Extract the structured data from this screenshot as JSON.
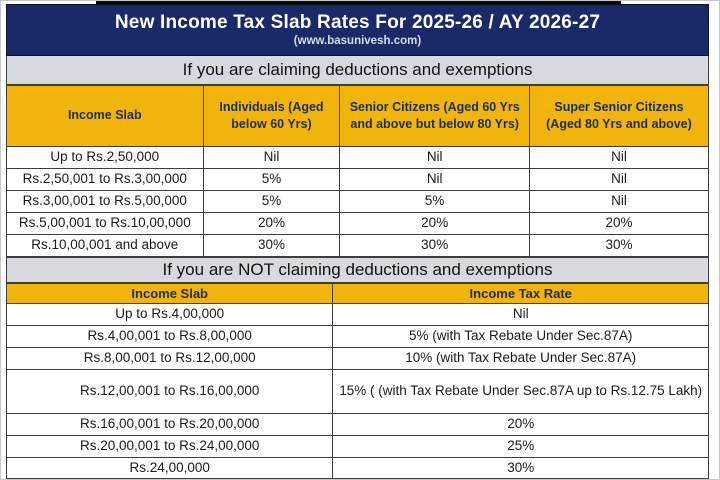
{
  "header": {
    "title": "New Income Tax Slab Rates For 2025-26 / AY 2026-27",
    "subtitle": "(www.basunivesh.com)"
  },
  "colors": {
    "navy_header": "#1A2A68",
    "gold_header": "#F0B40A",
    "gray_banner": "#D6DADE",
    "header_text_navy": "#1E2E55",
    "body_text": "#1A1A1A",
    "border": "#3E3E3E",
    "subtitle_text": "#D8DAE4"
  },
  "section_deductions": {
    "banner": "If you are claiming deductions and exemptions",
    "columns": [
      "Income Slab",
      "Individuals (Aged below 60 Yrs)",
      "Senior Citizens (Aged 60 Yrs and above but below 80 Yrs)",
      "Super Senior Citizens (Aged 80 Yrs and above)"
    ],
    "rows": [
      [
        "Up to Rs.2,50,000",
        "Nil",
        "Nil",
        "Nil"
      ],
      [
        "Rs.2,50,001 to Rs.3,00,000",
        "5%",
        "Nil",
        "Nil"
      ],
      [
        "Rs.3,00,001 to Rs.5,00,000",
        "5%",
        "5%",
        "Nil"
      ],
      [
        "Rs.5,00,001 to Rs.10,00,000",
        "20%",
        "20%",
        "20%"
      ],
      [
        "Rs.10,00,001 and above",
        "30%",
        "30%",
        "30%"
      ]
    ]
  },
  "section_no_deductions": {
    "banner": "If you are NOT claiming deductions and exemptions",
    "columns": [
      "Income Slab",
      "Income Tax Rate"
    ],
    "rows": [
      [
        "Up to Rs.4,00,000",
        "Nil"
      ],
      [
        "Rs.4,00,001 to Rs.8,00,000",
        "5% (with Tax Rebate Under Sec.87A)"
      ],
      [
        "Rs.8,00,001 to Rs.12,00,000",
        "10% (with Tax Rebate Under Sec.87A)"
      ],
      [
        "Rs.12,00,001 to Rs.16,00,000",
        "15% ( (with Tax Rebate Under Sec.87A up to Rs.12.75 Lakh)"
      ],
      [
        "Rs.16,00,001 to Rs.20,00,000",
        "20%"
      ],
      [
        "Rs.20,00,001 to Rs.24,00,000",
        "25%"
      ],
      [
        "Rs.24,00,000",
        "30%"
      ]
    ]
  }
}
